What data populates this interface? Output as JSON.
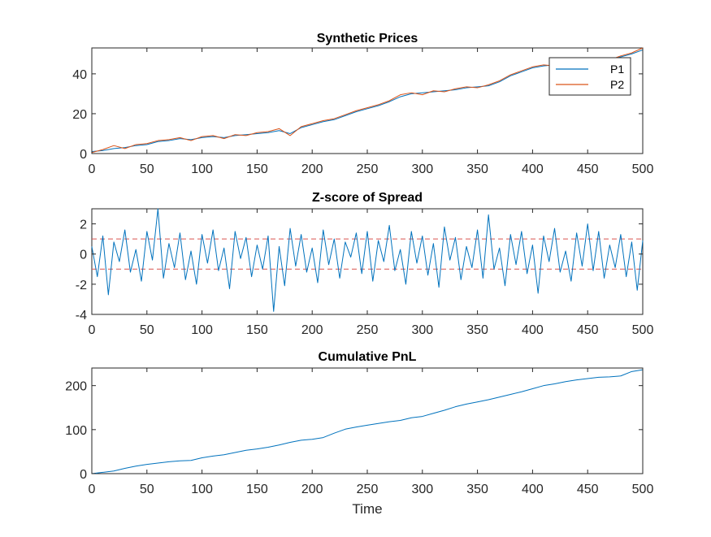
{
  "chart_data": [
    {
      "type": "line",
      "title": "Synthetic Prices",
      "xlabel": "",
      "xlim": [
        0,
        500
      ],
      "ylim": [
        0,
        53
      ],
      "xticks": [
        0,
        50,
        100,
        150,
        200,
        250,
        300,
        350,
        400,
        450,
        500
      ],
      "xtick_labels": [
        "0",
        "50",
        "100",
        "150",
        "200",
        "250",
        "300",
        "350",
        "400",
        "450",
        "500"
      ],
      "yticks": [
        0,
        20,
        40
      ],
      "ytick_labels": [
        "0",
        "20",
        "40"
      ],
      "grid": false,
      "legend": "top-right",
      "series": [
        {
          "name": "P1",
          "color": "#0072BD",
          "x": [
            0,
            10,
            20,
            30,
            40,
            50,
            60,
            70,
            80,
            90,
            100,
            110,
            120,
            130,
            140,
            150,
            160,
            170,
            180,
            190,
            200,
            210,
            220,
            230,
            240,
            250,
            260,
            270,
            280,
            290,
            300,
            310,
            320,
            330,
            340,
            350,
            360,
            370,
            380,
            390,
            400,
            410,
            420,
            430,
            440,
            450,
            460,
            470,
            480,
            490,
            500
          ],
          "values": [
            1,
            1.5,
            2.5,
            3,
            4,
            4.5,
            6,
            6.5,
            7.5,
            7,
            8,
            8.5,
            8,
            9,
            9.5,
            10,
            10.5,
            11.5,
            10,
            13,
            14.5,
            16,
            17,
            19,
            21,
            22.5,
            24,
            26,
            28.5,
            30,
            30.5,
            31,
            31.5,
            32,
            33,
            33.5,
            34,
            36,
            39,
            41,
            43,
            44,
            44.5,
            45,
            45.5,
            46,
            47,
            47.5,
            48.5,
            50,
            52
          ]
        },
        {
          "name": "P2",
          "color": "#D95319",
          "x": [
            0,
            10,
            20,
            30,
            40,
            50,
            60,
            70,
            80,
            90,
            100,
            110,
            120,
            130,
            140,
            150,
            160,
            170,
            180,
            190,
            200,
            210,
            220,
            230,
            240,
            250,
            260,
            270,
            280,
            290,
            300,
            310,
            320,
            330,
            340,
            350,
            360,
            370,
            380,
            390,
            400,
            410,
            420,
            430,
            440,
            450,
            460,
            470,
            480,
            490,
            500
          ],
          "values": [
            0.5,
            2,
            4,
            2.5,
            4.5,
            5,
            6.5,
            7,
            8,
            6.5,
            8.5,
            9,
            7.5,
            9.5,
            9,
            10.5,
            11,
            12.5,
            9,
            13.5,
            15,
            16.5,
            17.5,
            19.5,
            21.5,
            23,
            24.5,
            26.5,
            29.5,
            30.5,
            29.5,
            31.5,
            31,
            32.5,
            33.5,
            33,
            34.5,
            36.5,
            39.5,
            41.5,
            43.5,
            44.5,
            44,
            45.5,
            45,
            46.5,
            47.5,
            47,
            49,
            50.5,
            53
          ]
        }
      ]
    },
    {
      "type": "line",
      "title": "Z-score of Spread",
      "xlabel": "",
      "xlim": [
        0,
        500
      ],
      "ylim": [
        -4,
        3
      ],
      "xticks": [
        0,
        50,
        100,
        150,
        200,
        250,
        300,
        350,
        400,
        450,
        500
      ],
      "xtick_labels": [
        "0",
        "50",
        "100",
        "150",
        "200",
        "250",
        "300",
        "350",
        "400",
        "450",
        "500"
      ],
      "yticks": [
        -4,
        -2,
        0,
        2
      ],
      "ytick_labels": [
        "-4",
        "-2",
        "0",
        "2"
      ],
      "grid": false,
      "thresholds": [
        {
          "value": 1,
          "color": "#D9534F",
          "style": "dashed"
        },
        {
          "value": -1,
          "color": "#D9534F",
          "style": "dashed"
        }
      ],
      "series": [
        {
          "color": "#0072BD",
          "x": [
            0,
            5,
            10,
            15,
            20,
            25,
            30,
            35,
            40,
            45,
            50,
            55,
            60,
            65,
            70,
            75,
            80,
            85,
            90,
            95,
            100,
            105,
            110,
            115,
            120,
            125,
            130,
            135,
            140,
            145,
            150,
            155,
            160,
            165,
            170,
            175,
            180,
            185,
            190,
            195,
            200,
            205,
            210,
            215,
            220,
            225,
            230,
            235,
            240,
            245,
            250,
            255,
            260,
            265,
            270,
            275,
            280,
            285,
            290,
            295,
            300,
            305,
            310,
            315,
            320,
            325,
            330,
            335,
            340,
            345,
            350,
            355,
            360,
            365,
            370,
            375,
            380,
            385,
            390,
            395,
            400,
            405,
            410,
            415,
            420,
            425,
            430,
            435,
            440,
            445,
            450,
            455,
            460,
            465,
            470,
            475,
            480,
            485,
            490,
            495,
            500
          ],
          "values": [
            0.5,
            -1.5,
            1.2,
            -2.7,
            0.8,
            -0.5,
            1.6,
            -1.2,
            0.3,
            -1.8,
            1.5,
            -0.4,
            3.0,
            -1.6,
            0.7,
            -0.9,
            1.4,
            -1.7,
            0.2,
            -2.0,
            1.3,
            -0.6,
            1.6,
            -1.1,
            0.4,
            -2.3,
            1.5,
            -0.3,
            1.1,
            -1.5,
            0.6,
            -1.0,
            1.2,
            -3.8,
            0.5,
            -2.1,
            1.7,
            -0.8,
            1.3,
            -1.2,
            0.4,
            -1.9,
            1.6,
            -0.7,
            1.0,
            -1.6,
            0.8,
            -0.2,
            1.4,
            -1.3,
            1.5,
            -1.8,
            0.9,
            -0.5,
            1.9,
            -1.1,
            0.3,
            -2.0,
            1.5,
            -0.6,
            1.2,
            -1.4,
            0.7,
            -2.2,
            1.8,
            -0.4,
            1.1,
            -1.7,
            0.5,
            -0.9,
            1.6,
            -1.6,
            2.6,
            -1.0,
            0.4,
            -2.1,
            1.3,
            -0.7,
            1.5,
            -1.3,
            0.6,
            -2.6,
            1.2,
            -0.5,
            1.7,
            -1.2,
            0.2,
            -1.8,
            1.4,
            -0.8,
            2.0,
            -1.1,
            1.5,
            -1.6,
            0.6,
            -0.9,
            1.3,
            -1.5,
            0.8,
            -2.4,
            0.9
          ]
        }
      ]
    },
    {
      "type": "line",
      "title": "Cumulative PnL",
      "xlabel": "Time",
      "xlim": [
        0,
        500
      ],
      "ylim": [
        0,
        240
      ],
      "xticks": [
        0,
        50,
        100,
        150,
        200,
        250,
        300,
        350,
        400,
        450,
        500
      ],
      "xtick_labels": [
        "0",
        "50",
        "100",
        "150",
        "200",
        "250",
        "300",
        "350",
        "400",
        "450",
        "500"
      ],
      "yticks": [
        0,
        100,
        200
      ],
      "ytick_labels": [
        "0",
        "100",
        "200"
      ],
      "grid": false,
      "series": [
        {
          "color": "#0072BD",
          "x": [
            0,
            10,
            20,
            30,
            40,
            50,
            60,
            70,
            80,
            90,
            100,
            110,
            120,
            130,
            140,
            150,
            160,
            170,
            180,
            190,
            200,
            210,
            220,
            230,
            240,
            250,
            260,
            270,
            280,
            290,
            300,
            310,
            320,
            330,
            340,
            350,
            360,
            370,
            380,
            390,
            400,
            410,
            420,
            430,
            440,
            450,
            460,
            470,
            480,
            490,
            500
          ],
          "values": [
            0,
            3,
            6,
            12,
            17,
            21,
            24,
            27,
            29,
            30,
            36,
            40,
            43,
            48,
            53,
            56,
            60,
            65,
            71,
            76,
            78,
            82,
            92,
            101,
            106,
            110,
            114,
            118,
            121,
            127,
            130,
            137,
            144,
            152,
            158,
            163,
            168,
            174,
            180,
            186,
            193,
            200,
            204,
            209,
            213,
            216,
            219,
            220,
            222,
            232,
            236
          ]
        }
      ]
    }
  ]
}
